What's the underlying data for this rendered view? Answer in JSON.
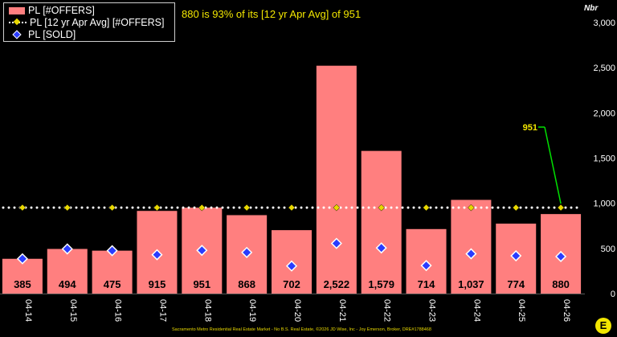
{
  "legend": {
    "offers": "PL [#OFFERS]",
    "avg": "PL [12 yr Apr Avg] [#OFFERS]",
    "sold": "PL [SOLD]"
  },
  "subtitle": "880 is 93% of its [12 yr Apr Avg] of 951",
  "unit_label": "Nbr",
  "footer": "Sacramento Metro Residential Real Estate Market - No B.S. Real Estate, ©2026 JD Wise, Inc - Joy Emerson, Broker, DRE#1788468",
  "logo": "E",
  "colors": {
    "bar": "#ff7f7f",
    "bar_label": "#000000",
    "avg_line": "#ffffff",
    "avg_marker": "#e8d800",
    "sold_marker": "#2a3cff",
    "callout": "#00e000",
    "callout_text": "#f2e600",
    "axis_text": "#ffffff",
    "background": "#000000"
  },
  "chart_data": {
    "type": "bar",
    "categories": [
      "04-14",
      "04-15",
      "04-16",
      "04-17",
      "04-18",
      "04-19",
      "04-20",
      "04-21",
      "04-22",
      "04-23",
      "04-24",
      "04-25",
      "04-26"
    ],
    "series": [
      {
        "name": "PL [#OFFERS]",
        "type": "bar",
        "values": [
          385,
          494,
          475,
          915,
          951,
          868,
          702,
          2522,
          1579,
          714,
          1037,
          774,
          880
        ],
        "labels": [
          "385",
          "494",
          "475",
          "915",
          "951",
          "868",
          "702",
          "2,522",
          "1,579",
          "714",
          "1,037",
          "774",
          "880"
        ]
      },
      {
        "name": "PL [12 yr Apr Avg] [#OFFERS]",
        "type": "line",
        "values": [
          951,
          951,
          951,
          951,
          951,
          951,
          951,
          951,
          951,
          951,
          951,
          951,
          951
        ]
      },
      {
        "name": "PL [SOLD]",
        "type": "scatter",
        "values": [
          385,
          494,
          475,
          430,
          478,
          455,
          305,
          555,
          505,
          310,
          440,
          418,
          410
        ]
      }
    ],
    "annotation": {
      "text": "951",
      "category": "04-26"
    },
    "ylim": [
      0,
      3000
    ],
    "yticks": [
      0,
      500,
      1000,
      1500,
      2000,
      2500,
      3000
    ],
    "ytick_labels": [
      "0",
      "500",
      "1,000",
      "1,500",
      "2,000",
      "2,500",
      "3,000"
    ],
    "yaxis_position": "right",
    "grid": false,
    "legend_position": "top-left"
  }
}
